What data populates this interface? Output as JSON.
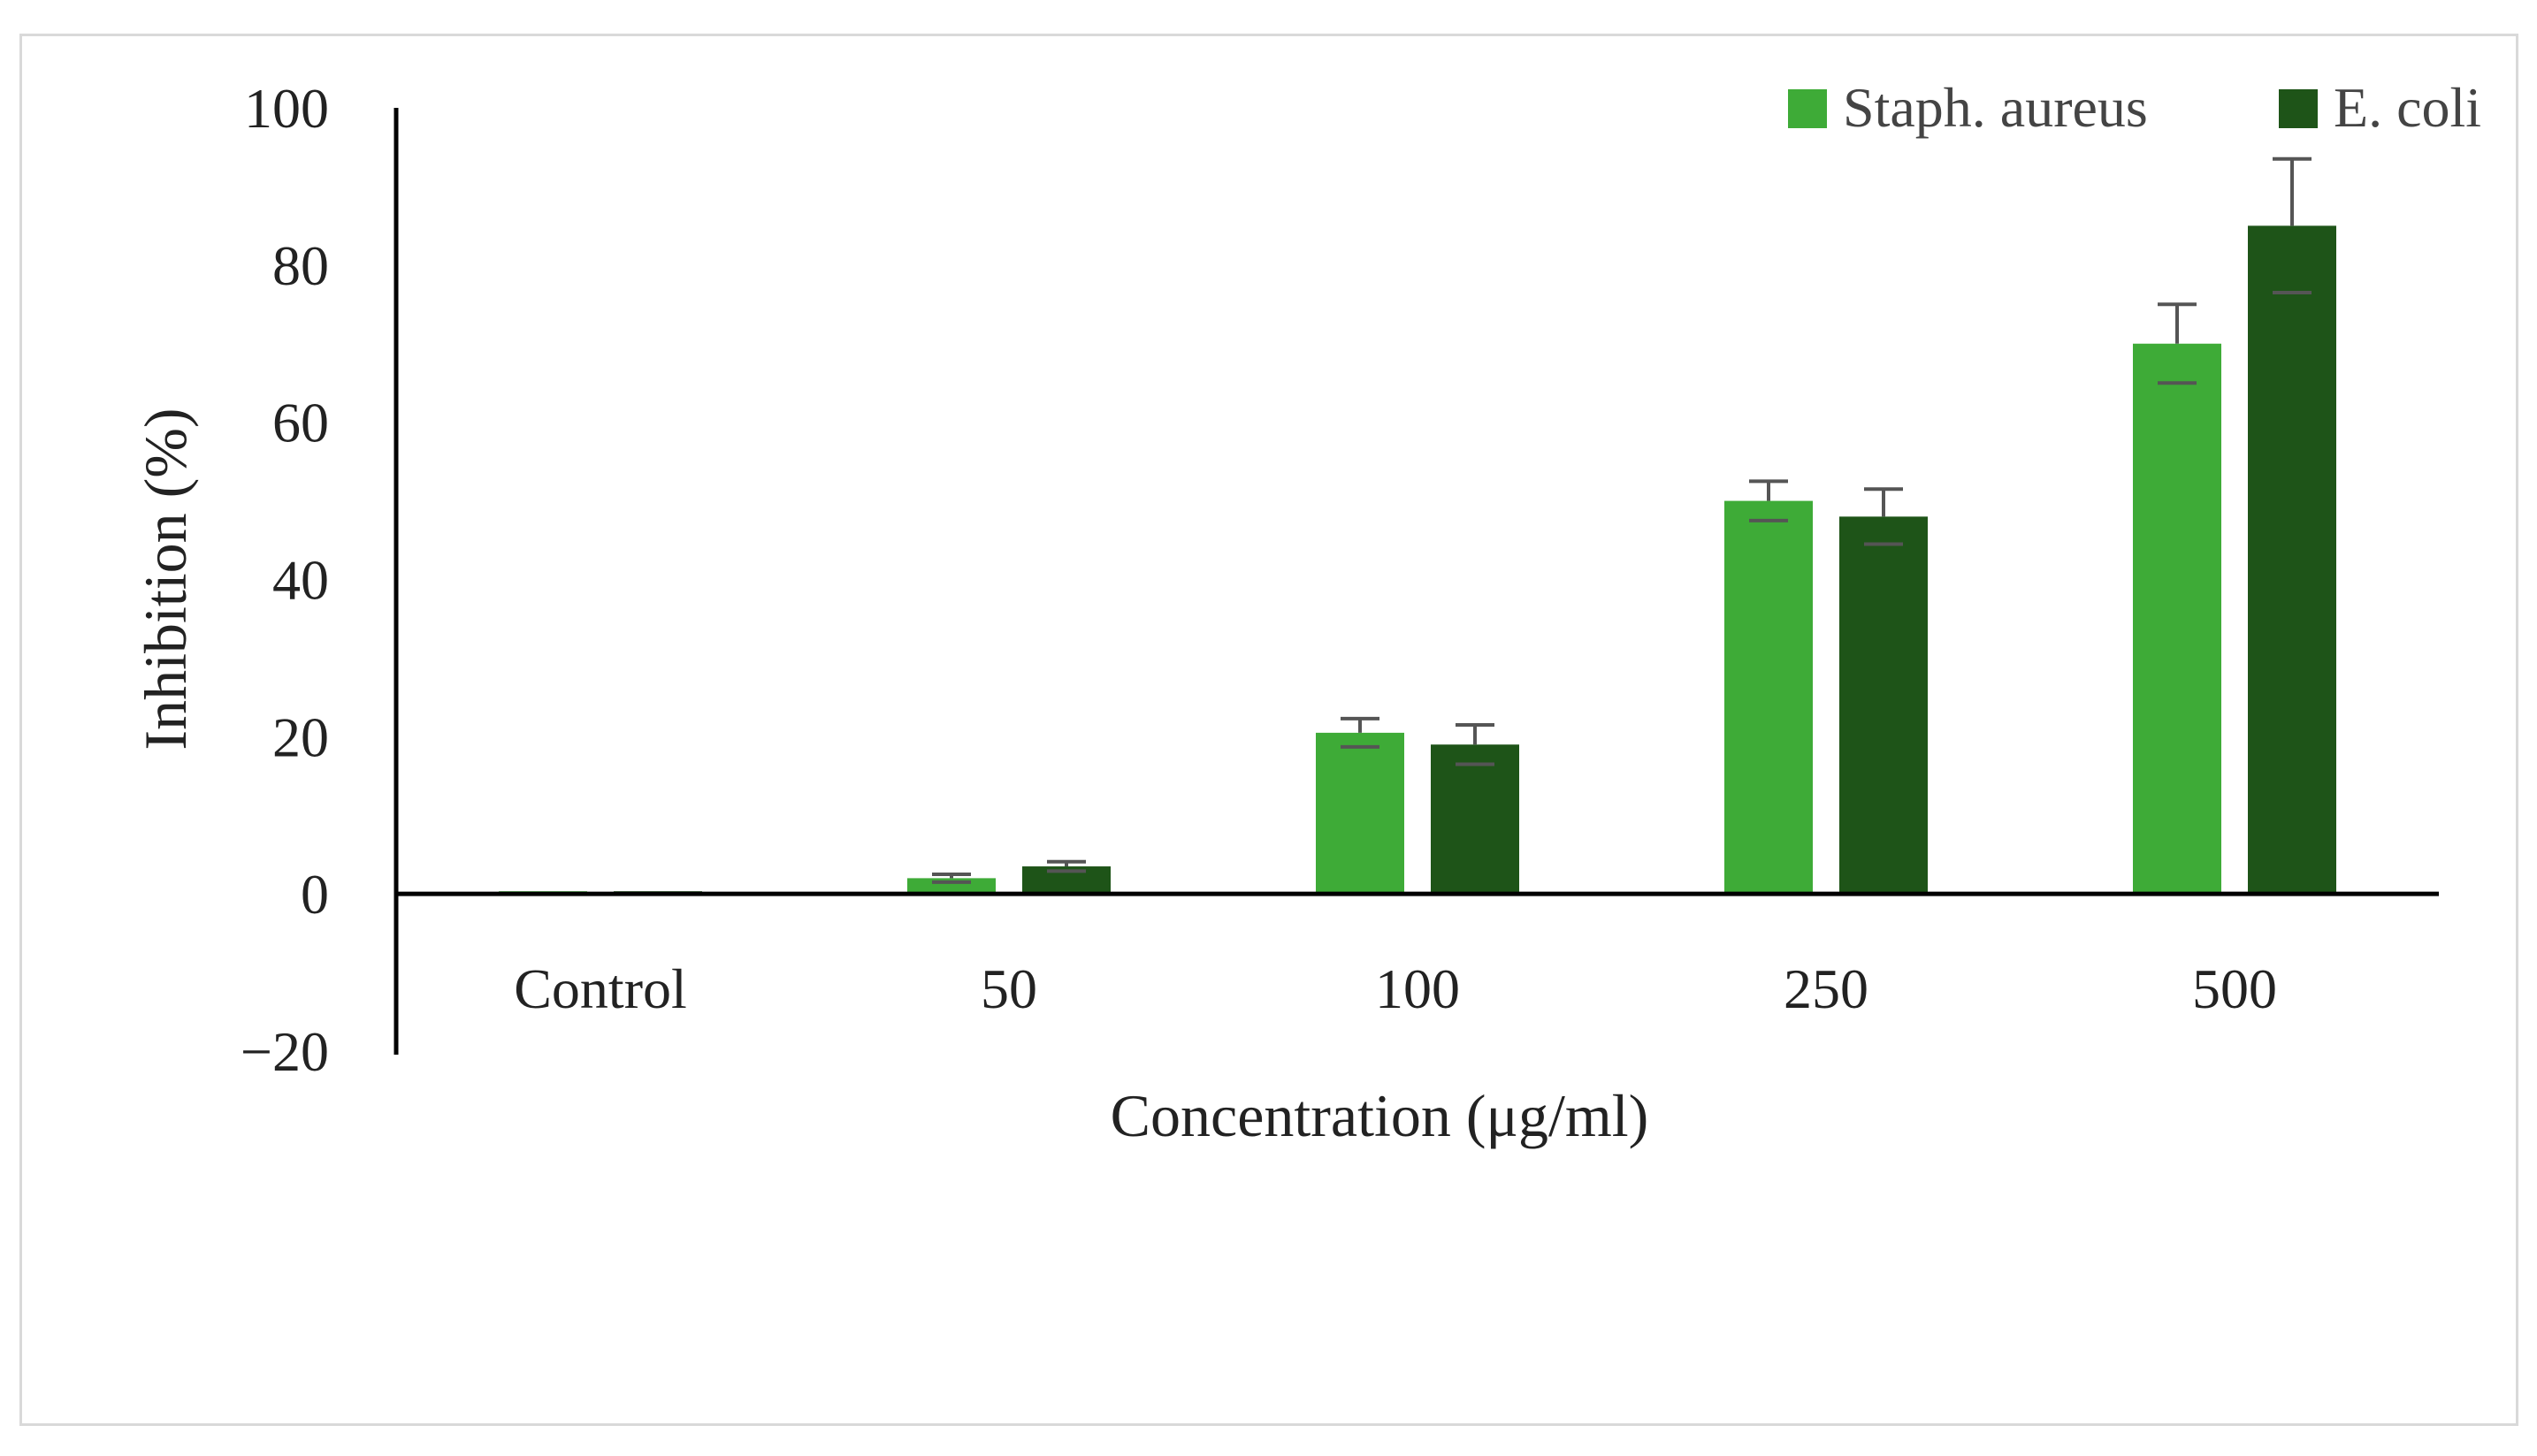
{
  "chart_data": {
    "type": "bar",
    "title": "",
    "xlabel": "Concentration (μg/ml)",
    "ylabel": "Inhibition (%)",
    "ylim": [
      -20,
      100
    ],
    "yticks": [
      -20,
      0,
      20,
      40,
      60,
      80,
      100
    ],
    "ytick_labels": [
      "−20",
      "0",
      "20",
      "40",
      "60",
      "80",
      "100"
    ],
    "categories": [
      "Control",
      "50",
      "100",
      "250",
      "500"
    ],
    "grid": false,
    "legend_position": "top-right",
    "series": [
      {
        "name": "Staph. aureus",
        "color": "#3eab37",
        "values": [
          0,
          2,
          20.5,
          50,
          70
        ],
        "errors": [
          0,
          0.5,
          1.8,
          2.5,
          5
        ]
      },
      {
        "name": "E. coli",
        "color": "#1e5418",
        "values": [
          0,
          3.5,
          19,
          48,
          85
        ],
        "errors": [
          0,
          0.6,
          2.5,
          3.5,
          8.5
        ]
      }
    ]
  }
}
